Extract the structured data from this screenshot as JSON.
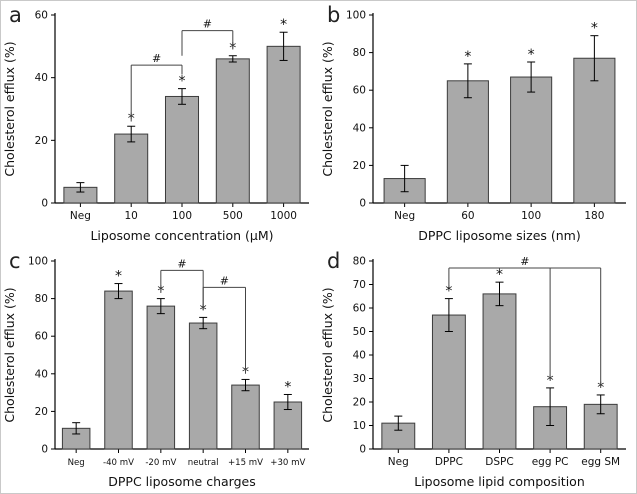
{
  "symbols": {
    "significance": "*",
    "comparison": "#"
  },
  "colors": {
    "bar_fill": "#a9a9a9",
    "bar_stroke": "#3c3c3c",
    "axis": "#000000",
    "bracket": "#444444"
  },
  "chart_data": [
    {
      "type": "bar",
      "panel_label": "a",
      "title": "",
      "xlabel": "Liposome concentration (μM)",
      "ylabel": "Cholesterol efflux (%)",
      "ylim": [
        0,
        60
      ],
      "yticks": [
        0,
        20,
        40,
        60
      ],
      "categories": [
        "Neg",
        "10",
        "100",
        "500",
        "1000"
      ],
      "values": [
        5,
        22,
        34,
        46,
        50
      ],
      "errors": [
        1.5,
        2.5,
        2.5,
        1,
        4.5
      ],
      "sig_stars": [
        false,
        true,
        true,
        true,
        true
      ],
      "brackets": [
        {
          "from": 1,
          "to": 2,
          "y": 44,
          "label": "#",
          "legs": [
            {
              "i": 1,
              "y2": 26
            },
            {
              "i": 2,
              "y2": 41
            }
          ]
        },
        {
          "from": 2,
          "to": 3,
          "y": 55,
          "label": "#",
          "legs": [
            {
              "i": 2,
              "y2": 47
            },
            {
              "i": 3,
              "y2": 49
            }
          ]
        }
      ]
    },
    {
      "type": "bar",
      "panel_label": "b",
      "title": "",
      "xlabel": "DPPC liposome sizes (nm)",
      "ylabel": "Cholesterol efflux (%)",
      "ylim": [
        0,
        100
      ],
      "yticks": [
        0,
        20,
        40,
        60,
        80,
        100
      ],
      "categories": [
        "Neg",
        "60",
        "100",
        "180"
      ],
      "values": [
        13,
        65,
        67,
        77
      ],
      "errors": [
        7,
        9,
        8,
        12
      ],
      "sig_stars": [
        false,
        true,
        true,
        true
      ],
      "brackets": []
    },
    {
      "type": "bar",
      "panel_label": "c",
      "title": "",
      "xlabel": "DPPC liposome charges",
      "ylabel": "Cholesterol efflux (%)",
      "ylim": [
        0,
        100
      ],
      "yticks": [
        0,
        20,
        40,
        60,
        80,
        100
      ],
      "categories": [
        "Neg",
        "-40 mV",
        "-20 mV",
        "neutral",
        "+15 mV",
        "+30 mV"
      ],
      "values": [
        11,
        84,
        76,
        67,
        34,
        25
      ],
      "errors": [
        3,
        4,
        4,
        3,
        3,
        4
      ],
      "sig_stars": [
        false,
        true,
        true,
        true,
        true,
        true
      ],
      "brackets": [
        {
          "from": 2,
          "to": 3,
          "y": 95,
          "label": "#",
          "legs": [
            {
              "i": 2,
              "y2": 83
            },
            {
              "i": 3,
              "y2": 74
            }
          ]
        },
        {
          "from": 3,
          "to": 4,
          "y": 86,
          "label": "#",
          "legs": [
            {
              "i": 3,
              "y2": 74
            },
            {
              "i": 4,
              "y2": 40
            }
          ]
        }
      ]
    },
    {
      "type": "bar",
      "panel_label": "d",
      "title": "",
      "xlabel": "Liposome lipid composition",
      "ylabel": "Cholesterol efflux (%)",
      "ylim": [
        0,
        80
      ],
      "yticks": [
        0,
        10,
        20,
        30,
        40,
        50,
        60,
        70,
        80
      ],
      "categories": [
        "Neg",
        "DPPC",
        "DSPC",
        "egg PC",
        "egg SM"
      ],
      "values": [
        11,
        57,
        66,
        18,
        19
      ],
      "errors": [
        3,
        7,
        5,
        8,
        4
      ],
      "sig_stars": [
        false,
        true,
        true,
        true,
        true
      ],
      "brackets": [
        {
          "from": 1,
          "to": 4,
          "y": 77,
          "label": "#",
          "legs": [
            {
              "i": 1,
              "y2": 69
            },
            {
              "i": 3,
              "y2": 30
            },
            {
              "i": 4,
              "y2": 27
            }
          ]
        }
      ]
    }
  ]
}
